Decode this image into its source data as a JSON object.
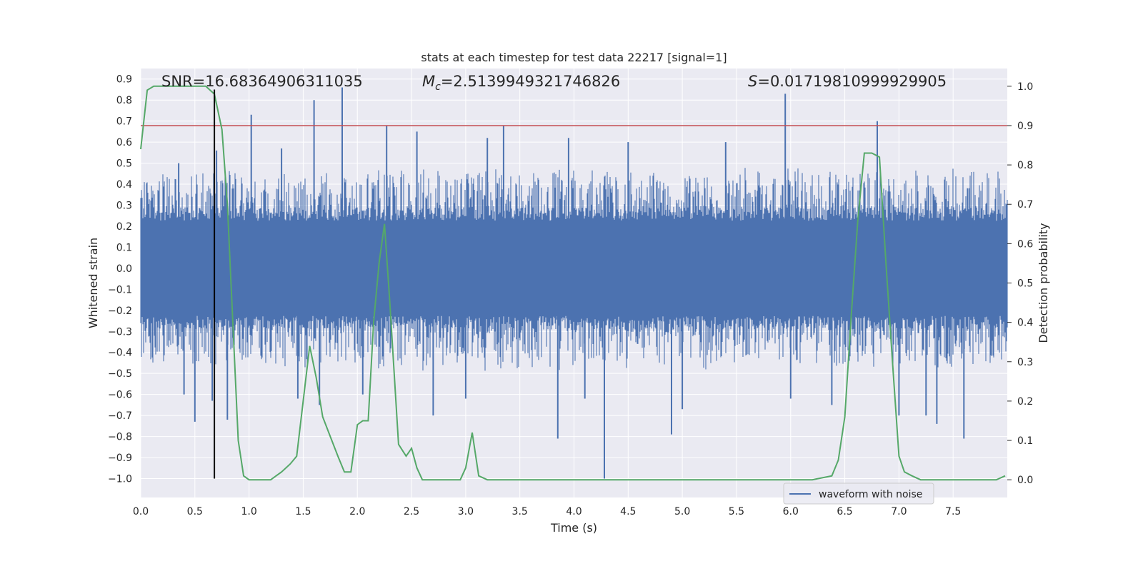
{
  "chart_data": {
    "type": "line",
    "title": "stats at each timestep for test data 22217 [signal=1]",
    "xlabel": "Time (s)",
    "ylabel": "Whitened strain",
    "y2label": "Detection probability",
    "xlim": [
      0.0,
      8.0
    ],
    "ylim": [
      -1.09,
      0.95
    ],
    "y2lim": [
      -0.045,
      1.045
    ],
    "x_ticks": [
      0.0,
      0.5,
      1.0,
      1.5,
      2.0,
      2.5,
      3.0,
      3.5,
      4.0,
      4.5,
      5.0,
      5.5,
      6.0,
      6.5,
      7.0,
      7.5
    ],
    "y_ticks": [
      -1.0,
      -0.9,
      -0.8,
      -0.7,
      -0.6,
      -0.5,
      -0.4,
      -0.3,
      -0.2,
      -0.1,
      0.0,
      0.1,
      0.2,
      0.3,
      0.4,
      0.5,
      0.6,
      0.7,
      0.8,
      0.9
    ],
    "y2_ticks": [
      0.0,
      0.1,
      0.2,
      0.3,
      0.4,
      0.5,
      0.6,
      0.7,
      0.8,
      0.9,
      1.0
    ],
    "grid": true,
    "legend": {
      "position": "bottom-right",
      "entries": [
        "waveform with noise"
      ]
    },
    "annotations": {
      "snr": {
        "text": "SNR=16.68364906311035"
      },
      "mc": {
        "symbol": "M",
        "sub": "c",
        "text": "=2.5139949321746826"
      },
      "s": {
        "symbol": "S",
        "text": "=0.01719810999929905"
      }
    },
    "colors": {
      "background": "#eaeaf2",
      "waveform": "#4c72b0",
      "probability": "#55a868",
      "threshold": "#c44e52",
      "marker": "#000000"
    },
    "series": [
      {
        "name": "waveform with noise",
        "axis": "left",
        "style": "dense-noise",
        "core_amplitude": 0.29,
        "spikes": [
          [
            0.35,
            0.5
          ],
          [
            0.4,
            -0.6
          ],
          [
            0.5,
            -0.73
          ],
          [
            0.66,
            -0.63
          ],
          [
            0.7,
            0.56
          ],
          [
            0.8,
            -0.72
          ],
          [
            1.02,
            0.73
          ],
          [
            1.3,
            0.57
          ],
          [
            1.45,
            -0.62
          ],
          [
            1.6,
            0.8
          ],
          [
            1.65,
            -0.65
          ],
          [
            1.86,
            0.86
          ],
          [
            2.05,
            -0.6
          ],
          [
            2.27,
            0.68
          ],
          [
            2.55,
            0.65
          ],
          [
            2.7,
            -0.7
          ],
          [
            3.0,
            -0.62
          ],
          [
            3.2,
            0.62
          ],
          [
            3.35,
            0.68
          ],
          [
            3.85,
            -0.81
          ],
          [
            3.95,
            0.62
          ],
          [
            4.1,
            -0.62
          ],
          [
            4.28,
            -1.0
          ],
          [
            4.5,
            0.6
          ],
          [
            4.9,
            -0.79
          ],
          [
            5.0,
            -0.67
          ],
          [
            5.4,
            0.6
          ],
          [
            5.95,
            0.83
          ],
          [
            6.0,
            -0.62
          ],
          [
            6.38,
            -0.65
          ],
          [
            6.8,
            0.7
          ],
          [
            7.0,
            -0.7
          ],
          [
            7.25,
            -0.7
          ],
          [
            7.35,
            -0.74
          ],
          [
            7.6,
            -0.81
          ]
        ]
      },
      {
        "name": "detection probability",
        "axis": "right",
        "x": [
          0.0,
          0.06,
          0.12,
          0.2,
          0.3,
          0.4,
          0.5,
          0.6,
          0.68,
          0.75,
          0.8,
          0.85,
          0.9,
          0.95,
          1.0,
          1.1,
          1.2,
          1.25,
          1.3,
          1.38,
          1.44,
          1.5,
          1.56,
          1.62,
          1.68,
          1.75,
          1.82,
          1.88,
          1.94,
          2.0,
          2.05,
          2.1,
          2.15,
          2.2,
          2.25,
          2.3,
          2.38,
          2.45,
          2.5,
          2.55,
          2.6,
          2.7,
          2.8,
          2.9,
          2.95,
          3.0,
          3.06,
          3.12,
          3.2,
          3.3,
          3.4,
          3.6,
          3.8,
          4.0,
          4.2,
          4.4,
          4.6,
          4.8,
          5.0,
          5.2,
          5.4,
          5.6,
          5.8,
          6.0,
          6.2,
          6.38,
          6.44,
          6.5,
          6.56,
          6.62,
          6.68,
          6.75,
          6.82,
          6.88,
          6.94,
          7.0,
          7.05,
          7.12,
          7.2,
          7.3,
          7.4,
          7.5,
          7.6,
          7.7,
          7.8,
          7.9,
          7.98
        ],
        "values": [
          0.84,
          0.99,
          1.0,
          1.0,
          1.0,
          1.0,
          1.0,
          1.0,
          0.98,
          0.89,
          0.7,
          0.4,
          0.1,
          0.01,
          0.0,
          0.0,
          0.0,
          0.01,
          0.02,
          0.04,
          0.06,
          0.2,
          0.34,
          0.26,
          0.16,
          0.11,
          0.06,
          0.02,
          0.02,
          0.14,
          0.15,
          0.15,
          0.4,
          0.55,
          0.65,
          0.45,
          0.09,
          0.06,
          0.08,
          0.03,
          0.0,
          0.0,
          0.0,
          0.0,
          0.0,
          0.03,
          0.12,
          0.01,
          0.0,
          0.0,
          0.0,
          0.0,
          0.0,
          0.0,
          0.0,
          0.0,
          0.0,
          0.0,
          0.0,
          0.0,
          0.0,
          0.0,
          0.0,
          0.0,
          0.0,
          0.01,
          0.05,
          0.16,
          0.42,
          0.66,
          0.83,
          0.83,
          0.82,
          0.55,
          0.3,
          0.06,
          0.02,
          0.01,
          0.0,
          0.0,
          0.0,
          0.0,
          0.0,
          0.0,
          0.0,
          0.0,
          0.01
        ]
      }
    ],
    "threshold": {
      "axis": "right",
      "value": 0.9
    },
    "marker_line": {
      "x": 0.68,
      "y_from": -1.0,
      "y_to": 0.85
    }
  }
}
